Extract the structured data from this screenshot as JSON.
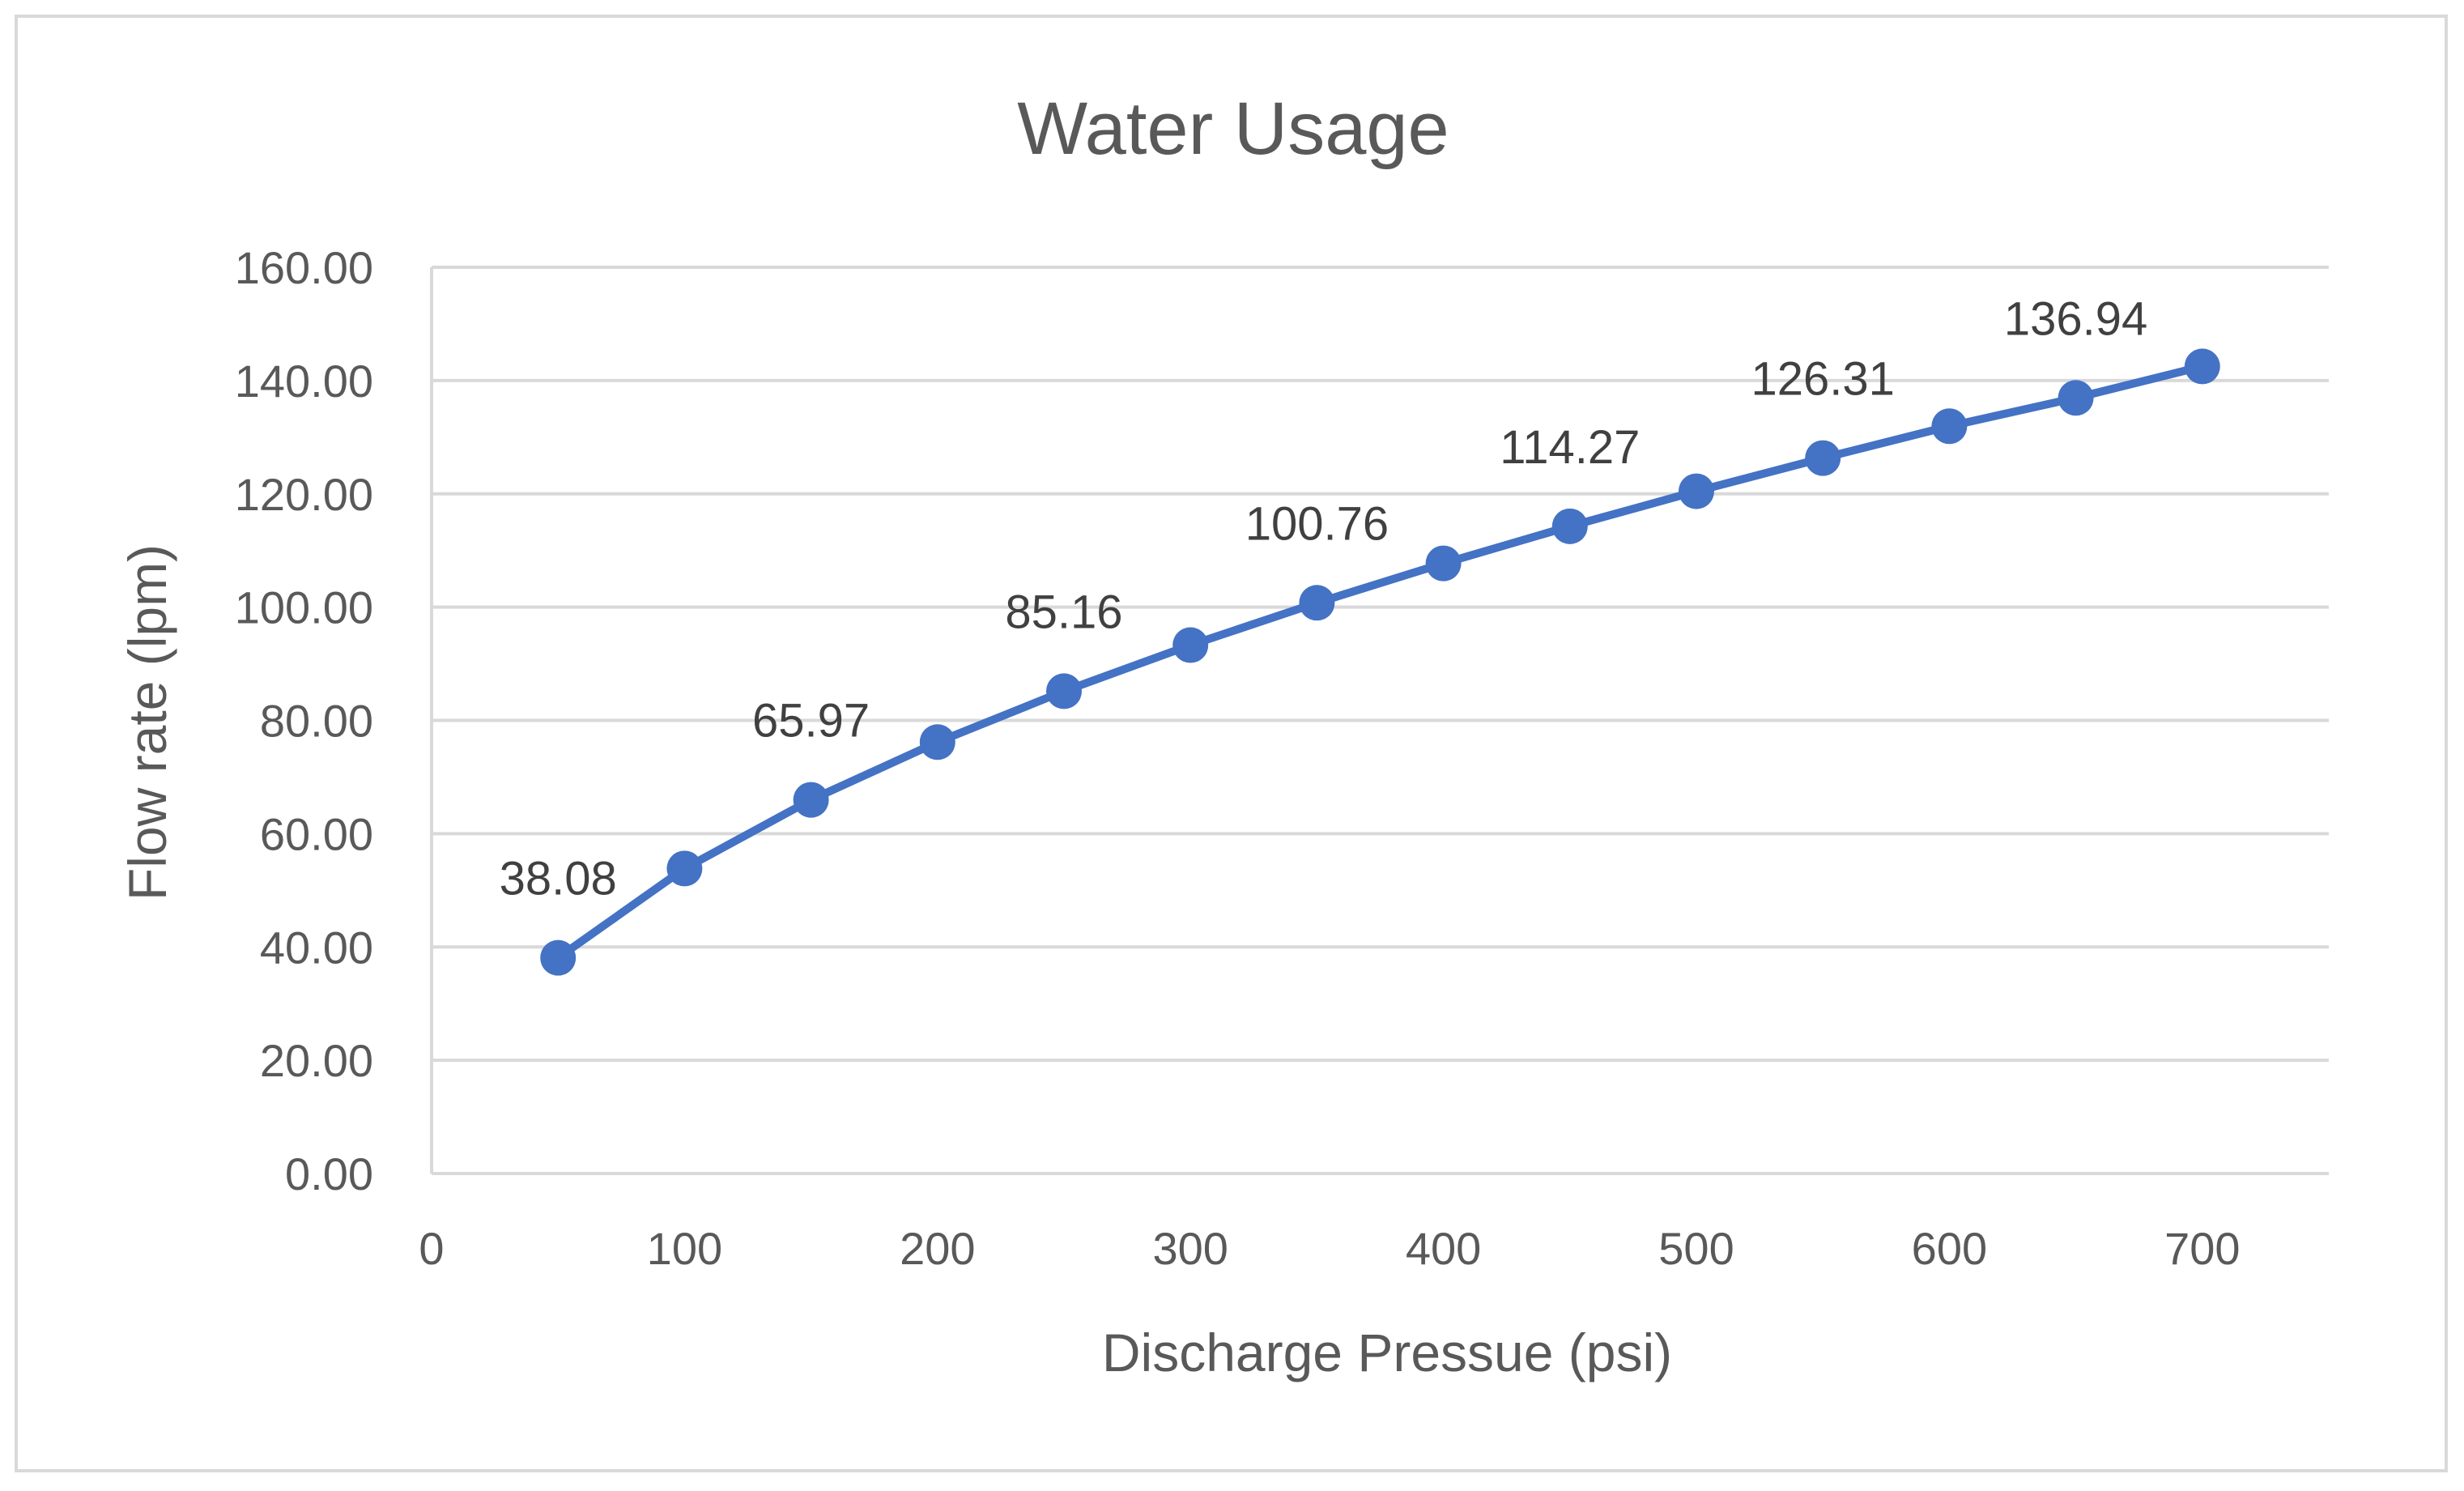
{
  "chart_data": {
    "type": "line",
    "title": "Water Usage",
    "xlabel": "Discharge Pressue (psi)",
    "ylabel": "Flow rate (lpm)",
    "xlim": [
      0,
      750
    ],
    "ylim": [
      0,
      160
    ],
    "x_ticks": [
      "0",
      "100",
      "200",
      "300",
      "400",
      "500",
      "600",
      "700"
    ],
    "x_tick_values": [
      0,
      100,
      200,
      300,
      400,
      500,
      600,
      700
    ],
    "y_ticks": [
      "0.00",
      "20.00",
      "40.00",
      "60.00",
      "80.00",
      "100.00",
      "120.00",
      "140.00",
      "160.00"
    ],
    "y_tick_values": [
      0,
      20,
      40,
      60,
      80,
      100,
      120,
      140,
      160
    ],
    "grid": true,
    "legend": "none",
    "colors": {
      "series": "#4472c4",
      "grid": "#d9d9d9",
      "text": "#595959",
      "label": "#404040"
    },
    "series": [
      {
        "name": "Flow rate",
        "x": [
          50,
          100,
          150,
          200,
          250,
          300,
          350,
          400,
          450,
          500,
          550,
          600,
          650,
          700
        ],
        "values": [
          38.08,
          53.85,
          65.97,
          76.17,
          85.16,
          93.29,
          100.76,
          107.72,
          114.27,
          120.45,
          126.31,
          131.94,
          136.94,
          142.5
        ],
        "data_labels": [
          {
            "x": 50,
            "text": "38.08"
          },
          {
            "x": 150,
            "text": "65.97"
          },
          {
            "x": 250,
            "text": "85.16"
          },
          {
            "x": 350,
            "text": "100.76"
          },
          {
            "x": 450,
            "text": "114.27"
          },
          {
            "x": 550,
            "text": "126.31"
          },
          {
            "x": 650,
            "text": "136.94"
          }
        ]
      }
    ]
  }
}
